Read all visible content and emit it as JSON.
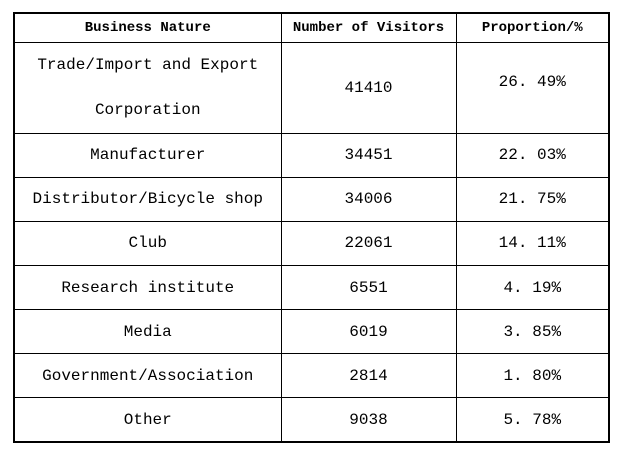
{
  "table": {
    "headers": {
      "business_nature": "Business Nature",
      "number_of_visitors": "Number of Visitors",
      "proportion": "Proportion/%"
    },
    "rows": [
      {
        "nature_line1": "Trade/Import and Export",
        "nature_line2": "Corporation",
        "visitors": "41410",
        "proportion": "26. 49%"
      },
      {
        "nature": "Manufacturer",
        "visitors": "34451",
        "proportion": "22. 03%"
      },
      {
        "nature": "Distributor/Bicycle shop",
        "visitors": "34006",
        "proportion": "21. 75%"
      },
      {
        "nature": "Club",
        "visitors": "22061",
        "proportion": "14. 11%"
      },
      {
        "nature": "Research institute",
        "visitors": "6551",
        "proportion": "4. 19%"
      },
      {
        "nature": "Media",
        "visitors": "6019",
        "proportion": "3. 85%"
      },
      {
        "nature": "Government/Association",
        "visitors": "2814",
        "proportion": "1. 80%"
      },
      {
        "nature": "Other",
        "visitors": "9038",
        "proportion": "5. 78%"
      }
    ]
  },
  "chart_data": {
    "type": "table",
    "title": "",
    "columns": [
      "Business Nature",
      "Number of Visitors",
      "Proportion/%"
    ],
    "rows": [
      [
        "Trade/Import and Export Corporation",
        41410,
        "26.49%"
      ],
      [
        "Manufacturer",
        34451,
        "22.03%"
      ],
      [
        "Distributor/Bicycle shop",
        34006,
        "21.75%"
      ],
      [
        "Club",
        22061,
        "14.11%"
      ],
      [
        "Research institute",
        6551,
        "4.19%"
      ],
      [
        "Media",
        6019,
        "3.85%"
      ],
      [
        "Government/Association",
        2814,
        "1.80%"
      ],
      [
        "Other",
        9038,
        "5.78%"
      ]
    ]
  },
  "colors": {
    "border": "#000000",
    "text": "#000000",
    "background": "#ffffff"
  }
}
